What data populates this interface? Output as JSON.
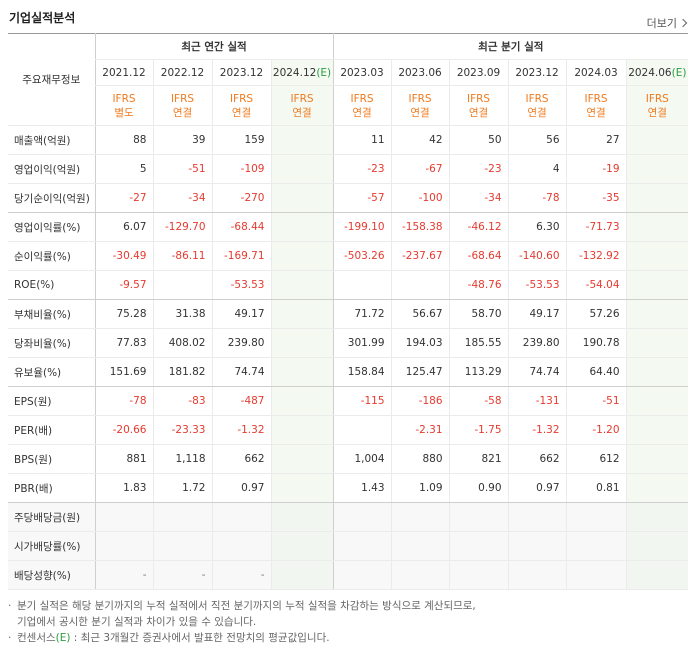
{
  "header": {
    "title": "기업실적분석",
    "more": "더보기"
  },
  "table": {
    "corner": "주요재무정보",
    "groups": [
      {
        "label": "최근 연간 실적",
        "columns": [
          {
            "date": "2021.12",
            "standard": "IFRS",
            "basis": "별도"
          },
          {
            "date": "2022.12",
            "standard": "IFRS",
            "basis": "연결"
          },
          {
            "date": "2023.12",
            "standard": "IFRS",
            "basis": "연결"
          },
          {
            "date": "2024.12",
            "estimate": "(E)",
            "standard": "IFRS",
            "basis": "연결"
          }
        ]
      },
      {
        "label": "최근 분기 실적",
        "columns": [
          {
            "date": "2023.03",
            "standard": "IFRS",
            "basis": "연결"
          },
          {
            "date": "2023.06",
            "standard": "IFRS",
            "basis": "연결"
          },
          {
            "date": "2023.09",
            "standard": "IFRS",
            "basis": "연결"
          },
          {
            "date": "2023.12",
            "standard": "IFRS",
            "basis": "연결"
          },
          {
            "date": "2024.03",
            "standard": "IFRS",
            "basis": "연결"
          },
          {
            "date": "2024.06",
            "estimate": "(E)",
            "standard": "IFRS",
            "basis": "연결"
          }
        ]
      }
    ],
    "rows": [
      {
        "label": "매출액(억원)",
        "values": [
          "88",
          "39",
          "159",
          null,
          "11",
          "42",
          "50",
          "56",
          "27",
          null
        ]
      },
      {
        "label": "영업이익(억원)",
        "values": [
          "5",
          "-51",
          "-109",
          null,
          "-23",
          "-67",
          "-23",
          "4",
          "-19",
          null
        ]
      },
      {
        "label": "당기순이익(억원)",
        "values": [
          "-27",
          "-34",
          "-270",
          null,
          "-57",
          "-100",
          "-34",
          "-78",
          "-35",
          null
        ]
      },
      {
        "label": "영업이익률(%)",
        "values": [
          "6.07",
          "-129.70",
          "-68.44",
          null,
          "-199.10",
          "-158.38",
          "-46.12",
          "6.30",
          "-71.73",
          null
        ]
      },
      {
        "label": "순이익률(%)",
        "values": [
          "-30.49",
          "-86.11",
          "-169.71",
          null,
          "-503.26",
          "-237.67",
          "-68.64",
          "-140.60",
          "-132.92",
          null
        ]
      },
      {
        "label": "ROE(%)",
        "values": [
          "-9.57",
          null,
          "-53.53",
          null,
          null,
          null,
          "-48.76",
          "-53.53",
          "-54.04",
          null
        ]
      },
      {
        "label": "부채비율(%)",
        "values": [
          "75.28",
          "31.38",
          "49.17",
          null,
          "71.72",
          "56.67",
          "58.70",
          "49.17",
          "57.26",
          null
        ]
      },
      {
        "label": "당좌비율(%)",
        "values": [
          "77.83",
          "408.02",
          "239.80",
          null,
          "301.99",
          "194.03",
          "185.55",
          "239.80",
          "190.78",
          null
        ]
      },
      {
        "label": "유보율(%)",
        "values": [
          "151.69",
          "181.82",
          "74.74",
          null,
          "158.84",
          "125.47",
          "113.29",
          "74.74",
          "64.40",
          null
        ]
      },
      {
        "label": "EPS(원)",
        "values": [
          "-78",
          "-83",
          "-487",
          null,
          "-115",
          "-186",
          "-58",
          "-131",
          "-51",
          null
        ]
      },
      {
        "label": "PER(배)",
        "values": [
          "-20.66",
          "-23.33",
          "-1.32",
          null,
          null,
          "-2.31",
          "-1.75",
          "-1.32",
          "-1.20",
          null
        ]
      },
      {
        "label": "BPS(원)",
        "values": [
          "881",
          "1,118",
          "662",
          null,
          "1,004",
          "880",
          "821",
          "662",
          "612",
          null
        ]
      },
      {
        "label": "PBR(배)",
        "values": [
          "1.83",
          "1.72",
          "0.97",
          null,
          "1.43",
          "1.09",
          "0.90",
          "0.97",
          "0.81",
          null
        ]
      },
      {
        "label": "주당배당금(원)",
        "values": [
          null,
          null,
          null,
          null,
          null,
          null,
          null,
          null,
          null,
          null
        ]
      },
      {
        "label": "시가배당률(%)",
        "values": [
          null,
          null,
          null,
          null,
          null,
          null,
          null,
          null,
          null,
          null
        ]
      },
      {
        "label": "배당성향(%)",
        "values": [
          "-",
          "-",
          "-",
          null,
          null,
          null,
          null,
          null,
          null,
          null
        ]
      }
    ]
  },
  "notes": [
    {
      "lines": [
        "분기 실적은 해당 분기까지의 누적 실적에서 직전 분기까지의 누적 실적을 차감하는 방식으로 계산되므로,",
        "기업에서 공시한 분기 실적과 차이가 있을 수 있습니다."
      ]
    },
    {
      "lines": [
        "컨센서스",
        "(E)",
        " : 최근 3개월간 증권사에서 발표한 전망치의 평균값입니다."
      ]
    }
  ]
}
